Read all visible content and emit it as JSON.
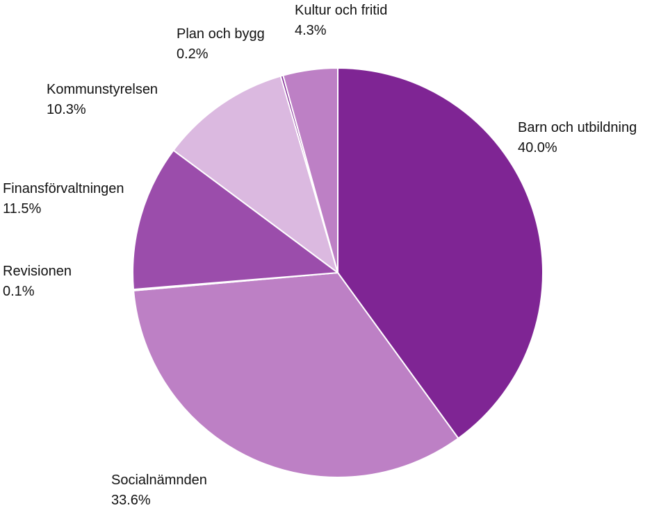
{
  "chart_data": {
    "type": "pie",
    "title": "",
    "start_angle_deg": 0,
    "direction": "clockwise",
    "slices": [
      {
        "label": "Barn och utbildning",
        "value": 40.0,
        "display": "40.0%",
        "color": "#7f2594"
      },
      {
        "label": "Socialnämnden",
        "value": 33.6,
        "display": "33.6%",
        "color": "#bd80c5"
      },
      {
        "label": "Revisionen",
        "value": 0.1,
        "display": "0.1%",
        "color": "#7f2594"
      },
      {
        "label": "Finansförvaltningen",
        "value": 11.5,
        "display": "11.5%",
        "color": "#9b4dab"
      },
      {
        "label": "Kommunstyrelsen",
        "value": 10.3,
        "display": "10.3%",
        "color": "#dbb9e0"
      },
      {
        "label": "Plan och bygg",
        "value": 0.2,
        "display": "0.2%",
        "color": "#7f2594"
      },
      {
        "label": "Kultur och fritid",
        "value": 4.3,
        "display": "4.3%",
        "color": "#bd80c5"
      }
    ],
    "legend": "none",
    "labels": "outside"
  }
}
